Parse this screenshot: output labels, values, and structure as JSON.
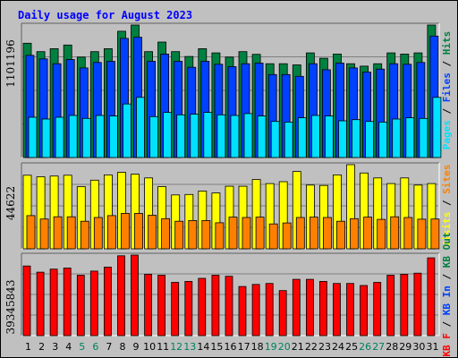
{
  "chart_data": {
    "type": "bar",
    "title": "Daily usage for August 2023",
    "categories": [
      "1",
      "2",
      "3",
      "4",
      "5",
      "6",
      "7",
      "8",
      "9",
      "10",
      "11",
      "12",
      "13",
      "14",
      "15",
      "16",
      "17",
      "18",
      "19",
      "20",
      "21",
      "22",
      "23",
      "24",
      "25",
      "26",
      "27",
      "28",
      "29",
      "30",
      "31"
    ],
    "weekend_days": [
      "5",
      "6",
      "12",
      "13",
      "19",
      "20",
      "26",
      "27"
    ],
    "panels": [
      {
        "name": "hits-files-pages",
        "ylim": [
          0,
          1101196
        ],
        "max_label": "1101196",
        "right_labels": [
          "Pages",
          "Files",
          "Hits"
        ],
        "series": [
          {
            "name": "Hits",
            "color": "#008040",
            "values": [
              950000,
              880000,
              905000,
              935000,
              835000,
              880000,
              905000,
              1050000,
              1101196,
              880000,
              960000,
              880000,
              840000,
              905000,
              870000,
              835000,
              880000,
              858000,
              780000,
              780000,
              770000,
              870000,
              825000,
              860000,
              780000,
              760000,
              780000,
              870000,
              860000,
              870000,
              1101196
            ]
          },
          {
            "name": "Files",
            "color": "#0040ff",
            "values": [
              850000,
              820000,
              780000,
              815000,
              745000,
              790000,
              800000,
              990000,
              1000000,
              800000,
              860000,
              800000,
              750000,
              800000,
              775000,
              755000,
              780000,
              785000,
              690000,
              690000,
              675000,
              780000,
              730000,
              785000,
              745000,
              710000,
              735000,
              780000,
              775000,
              790000,
              1010000
            ]
          },
          {
            "name": "Pages",
            "color": "#00e0ff",
            "values": [
              335000,
              320000,
              335000,
              350000,
              325000,
              350000,
              345000,
              445000,
              500000,
              340000,
              375000,
              355000,
              360000,
              375000,
              355000,
              350000,
              365000,
              345000,
              300000,
              295000,
              330000,
              350000,
              345000,
              305000,
              315000,
              300000,
              295000,
              320000,
              330000,
              325000,
              500000
            ]
          }
        ]
      },
      {
        "name": "visits-sites",
        "ylim": [
          0,
          44622
        ],
        "max_label": "44622",
        "right_labels": [
          "Visits",
          "Sites"
        ],
        "series": [
          {
            "name": "Visits",
            "color": "#ffff00",
            "values": [
              39000,
              38200,
              38600,
              39000,
              33000,
              36400,
              39200,
              40600,
              39600,
              37600,
              33000,
              28600,
              28800,
              30600,
              29600,
              33200,
              33200,
              36800,
              34600,
              35600,
              41000,
              33800,
              33600,
              39200,
              44622,
              40200,
              37600,
              34600,
              37600,
              33800,
              34600
            ]
          },
          {
            "name": "Sites",
            "color": "#ff8000",
            "values": [
              17600,
              15800,
              17000,
              17000,
              14600,
              16600,
              17600,
              18800,
              18800,
              17800,
              16000,
              14600,
              15000,
              15000,
              13800,
              16800,
              16600,
              16800,
              13200,
              13700,
              16600,
              16800,
              16600,
              14600,
              16000,
              16800,
              15600,
              17000,
              16600,
              15700,
              15800
            ]
          }
        ]
      },
      {
        "name": "kbytes",
        "ylim": [
          0,
          39345843
        ],
        "max_label": "39345843",
        "right_labels": [
          "KB F",
          "KB In",
          "KB Out"
        ],
        "series": [
          {
            "name": "KB F",
            "color": "#ff0000",
            "values": [
              34000000,
              31000000,
              32500000,
              33000000,
              29500000,
              31500000,
              33500000,
              39000000,
              39345843,
              30000000,
              29500000,
              26000000,
              26500000,
              28000000,
              29500000,
              29000000,
              24000000,
              25000000,
              25500000,
              22000000,
              27500000,
              27500000,
              26500000,
              25500000,
              25500000,
              24500000,
              26000000,
              29500000,
              30000000,
              30500000,
              38000000
            ]
          }
        ]
      }
    ]
  }
}
